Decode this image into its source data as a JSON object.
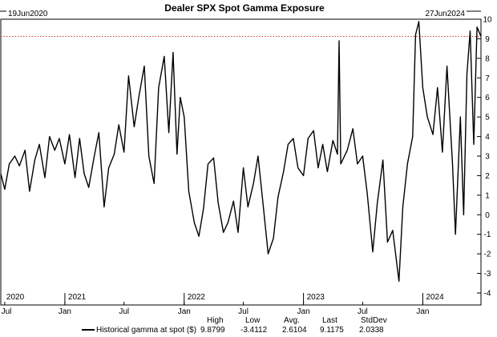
{
  "chart_data": {
    "type": "line",
    "title": "Dealer SPX Spot Gamma Exposure",
    "start_label": "19Jun2020",
    "end_label": "27Jun2024",
    "ylim": [
      -4,
      10
    ],
    "yticks": [
      10,
      9,
      8,
      7,
      6,
      5,
      4,
      3,
      2,
      1,
      0,
      -1,
      -2,
      -3,
      -4
    ],
    "grid": false,
    "reference_line": {
      "value": 9.1175,
      "style": "dotted",
      "color": "#c0392b"
    },
    "years": [
      {
        "label": "2020",
        "date": "2020-07-01"
      },
      {
        "label": "2021",
        "date": "2021-01-01"
      },
      {
        "label": "2022",
        "date": "2022-01-01"
      },
      {
        "label": "2023",
        "date": "2023-01-01"
      },
      {
        "label": "2024",
        "date": "2024-01-01"
      }
    ],
    "months": [
      {
        "label": "Jul",
        "date": "2020-07-01"
      },
      {
        "label": "Jan",
        "date": "2021-01-01"
      },
      {
        "label": "Jul",
        "date": "2021-07-01"
      },
      {
        "label": "Jan",
        "date": "2022-01-01"
      },
      {
        "label": "Jul",
        "date": "2022-07-01"
      },
      {
        "label": "Jan",
        "date": "2023-01-01"
      },
      {
        "label": "Jul",
        "date": "2023-07-01"
      },
      {
        "label": "Jan",
        "date": "2024-01-01"
      }
    ],
    "series": [
      {
        "name": "Historical gamma at spot ($)",
        "color": "#000000",
        "points": [
          [
            "2020-06-19",
            2.1
          ],
          [
            "2020-07-01",
            1.3
          ],
          [
            "2020-07-15",
            2.6
          ],
          [
            "2020-08-01",
            3.0
          ],
          [
            "2020-08-15",
            2.5
          ],
          [
            "2020-09-01",
            3.3
          ],
          [
            "2020-09-15",
            1.2
          ],
          [
            "2020-10-01",
            2.8
          ],
          [
            "2020-10-15",
            3.6
          ],
          [
            "2020-11-01",
            1.9
          ],
          [
            "2020-11-15",
            4.0
          ],
          [
            "2020-12-01",
            3.3
          ],
          [
            "2020-12-15",
            3.9
          ],
          [
            "2021-01-01",
            2.6
          ],
          [
            "2021-01-15",
            4.1
          ],
          [
            "2021-02-01",
            1.9
          ],
          [
            "2021-02-15",
            3.9
          ],
          [
            "2021-03-01",
            2.1
          ],
          [
            "2021-03-15",
            1.4
          ],
          [
            "2021-04-01",
            3.0
          ],
          [
            "2021-04-15",
            4.2
          ],
          [
            "2021-05-01",
            0.4
          ],
          [
            "2021-05-15",
            2.4
          ],
          [
            "2021-06-01",
            3.1
          ],
          [
            "2021-06-15",
            4.6
          ],
          [
            "2021-07-01",
            3.2
          ],
          [
            "2021-07-15",
            7.1
          ],
          [
            "2021-08-01",
            4.5
          ],
          [
            "2021-08-15",
            6.0
          ],
          [
            "2021-09-01",
            7.6
          ],
          [
            "2021-09-15",
            3.0
          ],
          [
            "2021-10-01",
            1.6
          ],
          [
            "2021-10-15",
            6.5
          ],
          [
            "2021-11-01",
            8.1
          ],
          [
            "2021-11-15",
            4.2
          ],
          [
            "2021-11-28",
            8.3
          ],
          [
            "2021-12-10",
            3.1
          ],
          [
            "2021-12-20",
            6.0
          ],
          [
            "2022-01-01",
            5.0
          ],
          [
            "2022-01-15",
            1.2
          ],
          [
            "2022-02-01",
            -0.4
          ],
          [
            "2022-02-15",
            -1.1
          ],
          [
            "2022-03-01",
            0.3
          ],
          [
            "2022-03-15",
            2.6
          ],
          [
            "2022-04-01",
            2.9
          ],
          [
            "2022-04-15",
            0.6
          ],
          [
            "2022-05-01",
            -0.9
          ],
          [
            "2022-05-15",
            -0.4
          ],
          [
            "2022-06-01",
            0.7
          ],
          [
            "2022-06-15",
            -0.9
          ],
          [
            "2022-07-01",
            2.4
          ],
          [
            "2022-07-15",
            0.4
          ],
          [
            "2022-08-01",
            1.6
          ],
          [
            "2022-08-15",
            3.0
          ],
          [
            "2022-09-01",
            0.3
          ],
          [
            "2022-09-15",
            -2.0
          ],
          [
            "2022-10-01",
            -1.2
          ],
          [
            "2022-10-15",
            0.9
          ],
          [
            "2022-11-01",
            2.2
          ],
          [
            "2022-11-15",
            3.6
          ],
          [
            "2022-12-01",
            3.9
          ],
          [
            "2022-12-15",
            2.4
          ],
          [
            "2023-01-01",
            2.0
          ],
          [
            "2023-01-15",
            3.9
          ],
          [
            "2023-02-01",
            4.3
          ],
          [
            "2023-02-15",
            2.4
          ],
          [
            "2023-03-01",
            3.6
          ],
          [
            "2023-03-15",
            2.2
          ],
          [
            "2023-04-01",
            3.8
          ],
          [
            "2023-04-15",
            3.1
          ],
          [
            "2023-04-20",
            8.9
          ],
          [
            "2023-04-25",
            2.6
          ],
          [
            "2023-05-15",
            3.3
          ],
          [
            "2023-06-01",
            4.4
          ],
          [
            "2023-06-15",
            2.6
          ],
          [
            "2023-07-01",
            3.0
          ],
          [
            "2023-07-15",
            1.1
          ],
          [
            "2023-08-01",
            -1.9
          ],
          [
            "2023-08-15",
            0.6
          ],
          [
            "2023-09-01",
            2.8
          ],
          [
            "2023-09-15",
            -1.4
          ],
          [
            "2023-10-01",
            -0.8
          ],
          [
            "2023-10-20",
            -3.4
          ],
          [
            "2023-11-01",
            0.4
          ],
          [
            "2023-11-15",
            2.6
          ],
          [
            "2023-12-01",
            4.0
          ],
          [
            "2023-12-10",
            9.2
          ],
          [
            "2023-12-20",
            9.8799
          ],
          [
            "2024-01-01",
            6.5
          ],
          [
            "2024-01-15",
            5.0
          ],
          [
            "2024-02-01",
            4.1
          ],
          [
            "2024-02-15",
            6.5
          ],
          [
            "2024-03-01",
            3.2
          ],
          [
            "2024-03-15",
            7.6
          ],
          [
            "2024-04-01",
            2.6
          ],
          [
            "2024-04-10",
            -1.0
          ],
          [
            "2024-04-25",
            5.0
          ],
          [
            "2024-05-05",
            0.0
          ],
          [
            "2024-05-15",
            7.2
          ],
          [
            "2024-05-25",
            9.4
          ],
          [
            "2024-06-05",
            3.6
          ],
          [
            "2024-06-15",
            9.6
          ],
          [
            "2024-06-27",
            9.1175
          ]
        ]
      }
    ],
    "legend": {
      "label": "Historical gamma at spot ($)",
      "headers": [
        "High",
        "Low",
        "Avg.",
        "Last",
        "StdDev"
      ],
      "values": [
        "9.8799",
        "-3.4112",
        "2.6104",
        "9.1175",
        "2.0338"
      ]
    }
  }
}
